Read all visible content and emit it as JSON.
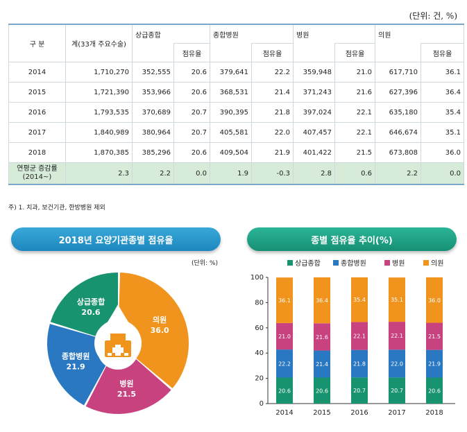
{
  "unit_label": "(단위: 건, %)",
  "table": {
    "head_category": "구  분",
    "head_total": "계(33개 주요수술)",
    "groups": [
      "상급종합",
      "종합병원",
      "병원",
      "의원"
    ],
    "share_label": "점유율",
    "rows": [
      {
        "year": "2014",
        "total": "1,710,270",
        "v": [
          "352,555",
          "20.6",
          "379,641",
          "22.2",
          "359,948",
          "21.0",
          "617,710",
          "36.1"
        ]
      },
      {
        "year": "2015",
        "total": "1,721,390",
        "v": [
          "353,966",
          "20.6",
          "368,531",
          "21.4",
          "371,243",
          "21.6",
          "627,396",
          "36.4"
        ]
      },
      {
        "year": "2016",
        "total": "1,793,535",
        "v": [
          "370,689",
          "20.7",
          "390,395",
          "21.8",
          "397,024",
          "22.1",
          "635,180",
          "35.4"
        ]
      },
      {
        "year": "2017",
        "total": "1,840,989",
        "v": [
          "380,964",
          "20.7",
          "405,581",
          "22.0",
          "407,457",
          "22.1",
          "646,674",
          "35.1"
        ]
      },
      {
        "year": "2018",
        "total": "1,870,385",
        "v": [
          "385,296",
          "20.6",
          "409,504",
          "21.9",
          "401,422",
          "21.5",
          "673,808",
          "36.0"
        ]
      }
    ],
    "avg_row": {
      "label_line1": "연평균 증감률",
      "label_line2": "(2014~)",
      "total": "2.3",
      "v": [
        "2.2",
        "0.0",
        "1.9",
        "-0.3",
        "2.8",
        "0.6",
        "2.2",
        "0.0"
      ]
    }
  },
  "note": "주) 1. 치과, 보건기관, 한방병원 제외",
  "pie_title": "2018년 요양기관종별 점유율",
  "pie_unit": "(단위: %)",
  "bar_title": "종별 점유율 추이(%)",
  "colors": {
    "sangup": "#17936f",
    "jonghap": "#2a78c2",
    "byeongwon": "#c8427f",
    "uiwon": "#f0941e"
  },
  "chart_data": [
    {
      "type": "pie",
      "title": "2018년 요양기관종별 점유율",
      "labels": [
        "의원",
        "병원",
        "종합병원",
        "상급종합"
      ],
      "values": [
        36.0,
        21.5,
        21.9,
        20.6
      ],
      "value_labels": [
        "36.0",
        "21.5",
        "21.9",
        "20.6"
      ]
    },
    {
      "type": "bar",
      "stacked": true,
      "title": "종별 점유율 추이(%)",
      "categories": [
        "2014",
        "2015",
        "2016",
        "2017",
        "2018"
      ],
      "series": [
        {
          "name": "상급종합",
          "values": [
            20.6,
            20.6,
            20.7,
            20.7,
            20.6
          ],
          "labels": [
            "20.6",
            "20.6",
            "20.7",
            "20.7",
            "20.6"
          ]
        },
        {
          "name": "종합병원",
          "values": [
            22.2,
            21.4,
            21.8,
            22.0,
            21.9
          ],
          "labels": [
            "22.2",
            "21.4",
            "21.8",
            "22.0",
            "21.9"
          ]
        },
        {
          "name": "병원",
          "values": [
            21.0,
            21.6,
            22.1,
            22.1,
            21.5
          ],
          "labels": [
            "21.0",
            "21.6",
            "22.1",
            "22.1",
            "21.5"
          ]
        },
        {
          "name": "의원",
          "values": [
            36.1,
            36.4,
            35.4,
            35.1,
            36.0
          ],
          "labels": [
            "36.1",
            "36.4",
            "35.4",
            "35.1",
            "36.0"
          ]
        }
      ],
      "ylim": [
        0,
        100
      ],
      "yticks": [
        "0",
        "20",
        "40",
        "60",
        "80",
        "100"
      ],
      "legend": "top"
    }
  ]
}
